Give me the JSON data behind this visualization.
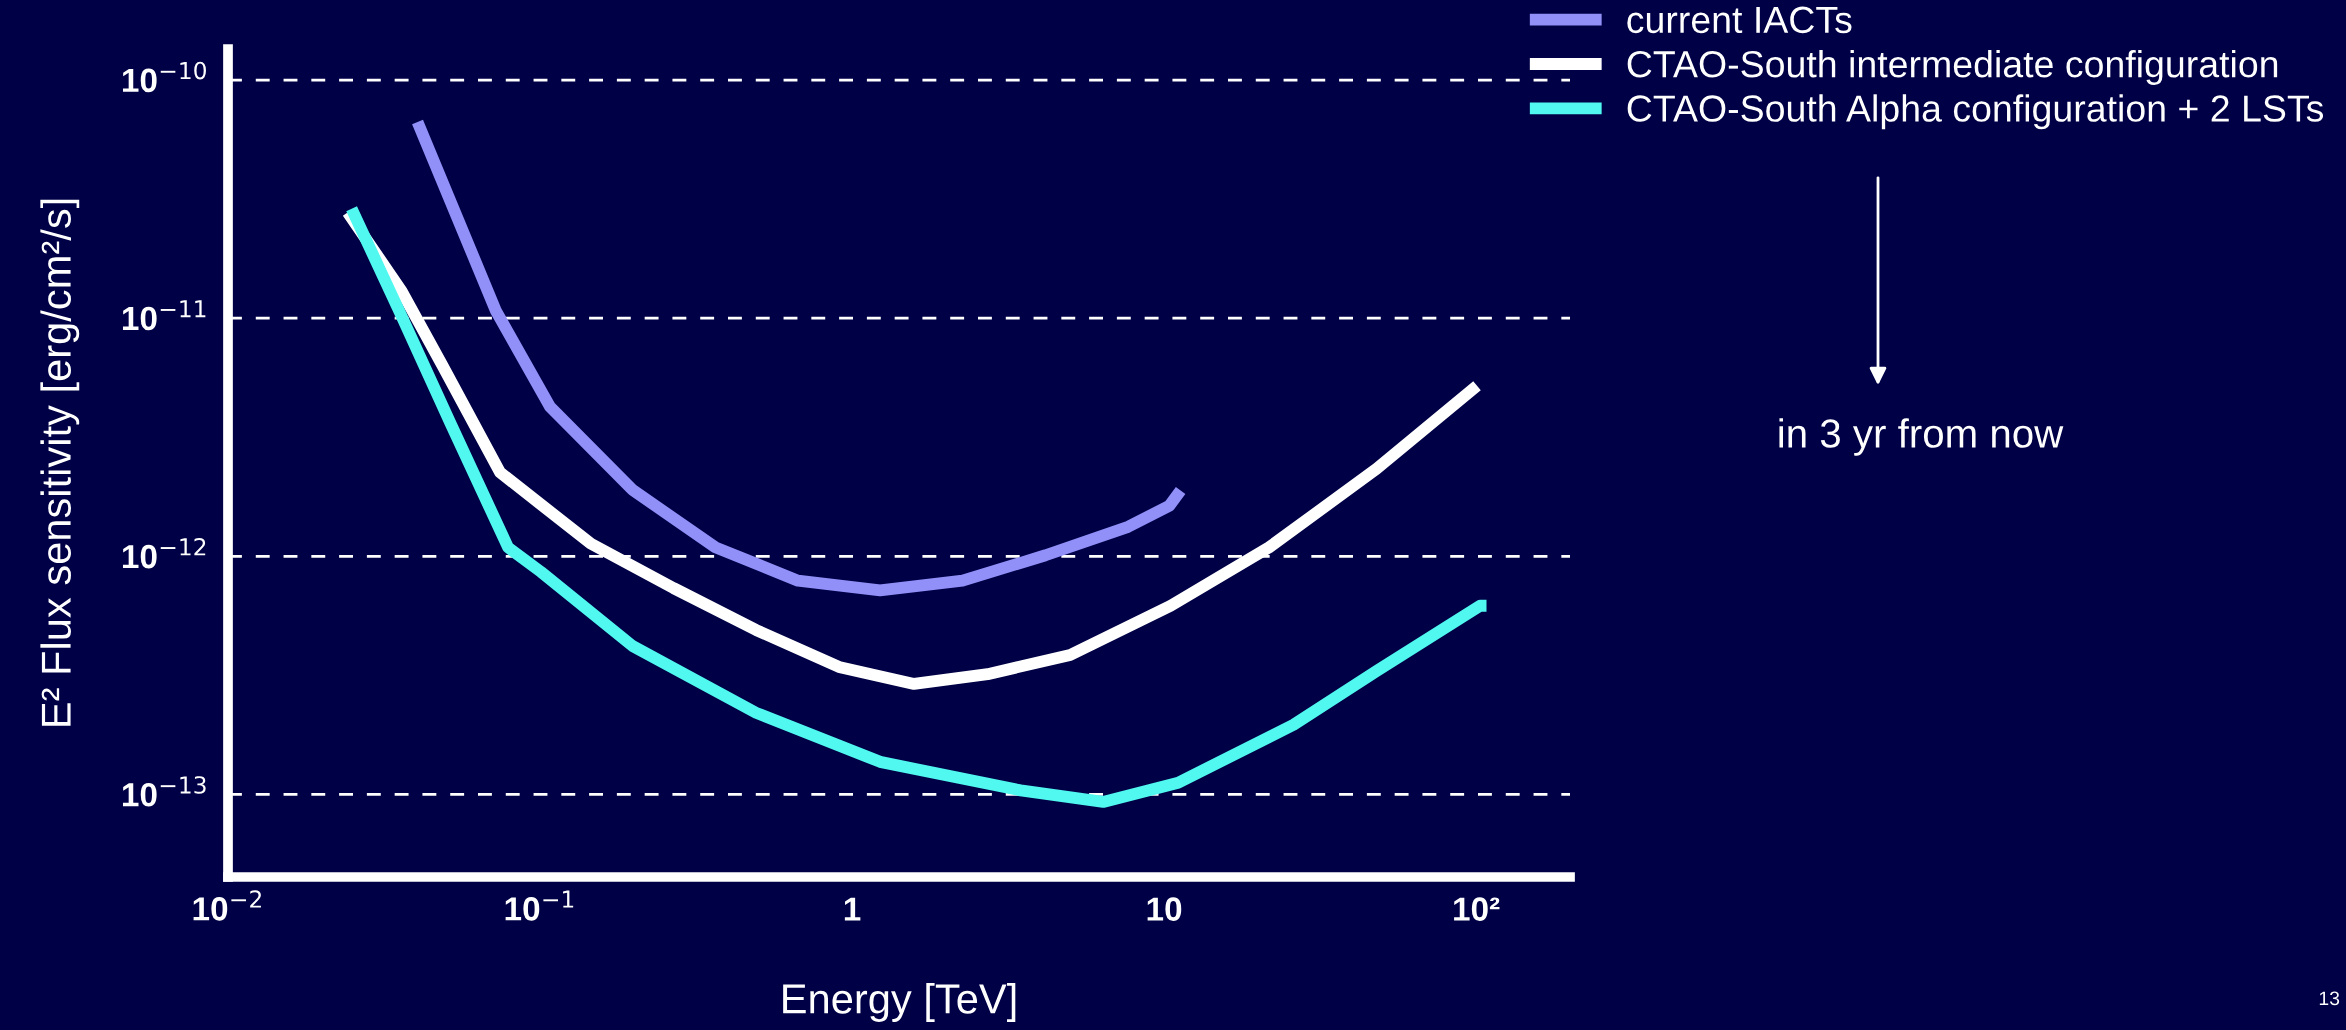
{
  "chart_data": {
    "type": "line",
    "xlabel": "Energy [TeV]",
    "ylabel": "E² Flux sensitivity [erg/cm²/s]",
    "log": "xy",
    "grid": "y",
    "line_style": "solid",
    "legend": "top right",
    "xlim": [
      0.01,
      200
    ],
    "ylim": [
      4.5e-14,
      1.35e-10
    ],
    "xticks": [
      {
        "value": 0.01,
        "label": "10$^{−2}$"
      },
      {
        "value": 0.1,
        "label": "10$^{−1}$"
      },
      {
        "value": 1,
        "label": "1"
      },
      {
        "value": 10,
        "label": "10"
      },
      {
        "value": 100,
        "label": "10²"
      }
    ],
    "yticks": [
      {
        "value": 1e-13,
        "label": "10$^{−13}$"
      },
      {
        "value": 1e-12,
        "label": "10$^{−12}$"
      },
      {
        "value": 1e-11,
        "label": "10$^{−11}$"
      },
      {
        "value": 1e-10,
        "label": "10$^{−10}$"
      }
    ],
    "series": [
      {
        "name": "current IACTs",
        "color": "#9090f8",
        "x": [
          0.0405,
          0.0723,
          0.1076,
          0.198,
          0.365,
          0.671,
          1.23,
          2.26,
          4.17,
          7.67,
          10.4,
          11.3
        ],
        "values": [
          6.67e-11,
          1.07e-11,
          4.25e-12,
          1.9e-12,
          1.09e-12,
          7.9e-13,
          7.2e-13,
          7.9e-13,
          1.01e-12,
          1.33e-12,
          1.63e-12,
          1.89e-12
        ]
      },
      {
        "name": "CTAO-South intermediate configuration",
        "color": "#ffffff",
        "x": [
          0.0242,
          0.036,
          0.0486,
          0.0745,
          0.1455,
          0.268,
          0.493,
          0.908,
          1.58,
          2.72,
          5.0,
          10.5,
          21.7,
          48,
          100.7
        ],
        "values": [
          2.78e-11,
          1.3e-11,
          6.35e-12,
          2.25e-12,
          1.13e-12,
          7.35e-13,
          4.9e-13,
          3.43e-13,
          2.91e-13,
          3.2e-13,
          3.85e-13,
          6.2e-13,
          1.09e-12,
          2.33e-12,
          5.2e-12
        ]
      },
      {
        "name": "CTAO-South Alpha configuration + 2 LSTs",
        "color": "#50f8f0",
        "x": [
          0.0249,
          0.036,
          0.0516,
          0.079,
          0.1007,
          0.198,
          0.493,
          1.23,
          3.47,
          6.38,
          11.1,
          26,
          48,
          103,
          108
        ],
        "values": [
          2.88e-11,
          1.02e-11,
          3.63e-12,
          1.09e-12,
          8.6e-13,
          4.2e-13,
          2.2e-13,
          1.37e-13,
          1.04e-13,
          9.3e-14,
          1.12e-13,
          1.96e-13,
          3.3e-13,
          6.2e-13,
          6.2e-13
        ]
      }
    ],
    "annotations": [
      "in 3 yr from now",
      "13"
    ]
  }
}
